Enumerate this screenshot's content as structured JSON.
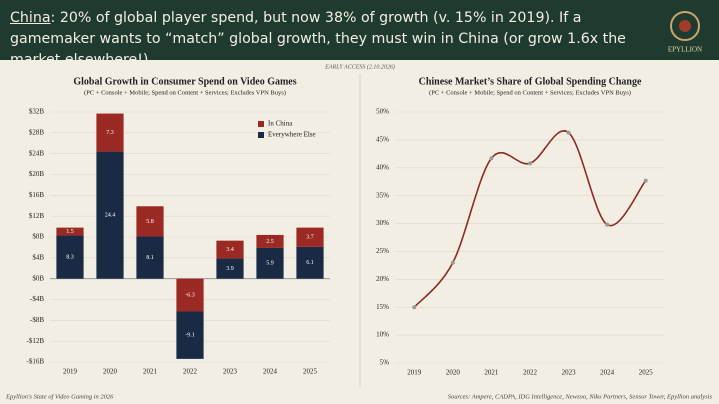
{
  "header": {
    "title_lead": "China",
    "title_rest": ": 20% of global player spend, but now 38% of growth (v. 15% in 2019). If a gamemaker wants to “match” global growth, they must win in China (or grow 1.6x the market elsewhere!)",
    "logo": "EPYLLION",
    "edition": "EARLY ACCESS (2.10.2026)"
  },
  "footer": {
    "left": "Epyllion's State of Video Gaming in 2026",
    "right": "Sources: Ampere, CADPA, IDG Intelligence, Newzoo, Niko Partners, Sensor Tower, Epyllion analysis"
  },
  "chart_data": [
    {
      "type": "bar",
      "stacked": true,
      "title": "Global Growth in Consumer Spend on Video Games",
      "subtitle": "(PC + Console + Mobile; Spend on Content + Services; Excludes VPN Buys)",
      "categories": [
        "2019",
        "2020",
        "2021",
        "2022",
        "2023",
        "2024",
        "2025"
      ],
      "series": [
        {
          "name": "Everywhere Else",
          "color": "#1b2a44",
          "values": [
            8.3,
            24.4,
            8.1,
            -9.1,
            3.9,
            5.9,
            6.1
          ]
        },
        {
          "name": "In China",
          "color": "#9b2a24",
          "values": [
            1.5,
            7.3,
            5.8,
            -6.3,
            3.4,
            2.5,
            3.7
          ]
        }
      ],
      "legend_order": [
        1,
        0
      ],
      "ylim": [
        -16,
        32
      ],
      "yticks": [
        {
          "value": -16,
          "label": "-$16B"
        },
        {
          "value": -12,
          "label": "-$12B"
        },
        {
          "value": -8,
          "label": "-$8B"
        },
        {
          "value": -4,
          "label": "-$4B"
        },
        {
          "value": 0,
          "label": "$0B"
        },
        {
          "value": 4,
          "label": "$4B"
        },
        {
          "value": 8,
          "label": "$8B"
        },
        {
          "value": 12,
          "label": "$12B"
        },
        {
          "value": 16,
          "label": "$16B"
        },
        {
          "value": 20,
          "label": "$20B"
        },
        {
          "value": 24,
          "label": "$24B"
        },
        {
          "value": 28,
          "label": "$28B"
        },
        {
          "value": 32,
          "label": "$32B"
        }
      ],
      "grid": true
    },
    {
      "type": "line",
      "title": "Chinese Market’s Share of Global Spending Change",
      "subtitle": "(PC + Console + Mobile; Spend on Content + Services; Excludes VPN Buys)",
      "x": [
        2019,
        2020,
        2021,
        2022,
        2023,
        2024,
        2025
      ],
      "xlim": [
        2018.5,
        2025.5
      ],
      "xticks": [
        2019,
        2020,
        2021,
        2022,
        2023,
        2024,
        2025
      ],
      "series": [
        {
          "name": "China share",
          "color": "#8e2a22",
          "values": [
            15,
            23,
            41.7,
            40.8,
            46.3,
            29.8,
            37.7
          ]
        }
      ],
      "ylim": [
        5,
        50
      ],
      "yticks": [
        {
          "value": 5,
          "label": "5%"
        },
        {
          "value": 10,
          "label": "10%"
        },
        {
          "value": 15,
          "label": "15%"
        },
        {
          "value": 20,
          "label": "20%"
        },
        {
          "value": 25,
          "label": "25%"
        },
        {
          "value": 30,
          "label": "30%"
        },
        {
          "value": 35,
          "label": "35%"
        },
        {
          "value": 40,
          "label": "40%"
        },
        {
          "value": 45,
          "label": "45%"
        },
        {
          "value": 50,
          "label": "50%"
        }
      ],
      "grid": true,
      "smooth": true
    }
  ]
}
